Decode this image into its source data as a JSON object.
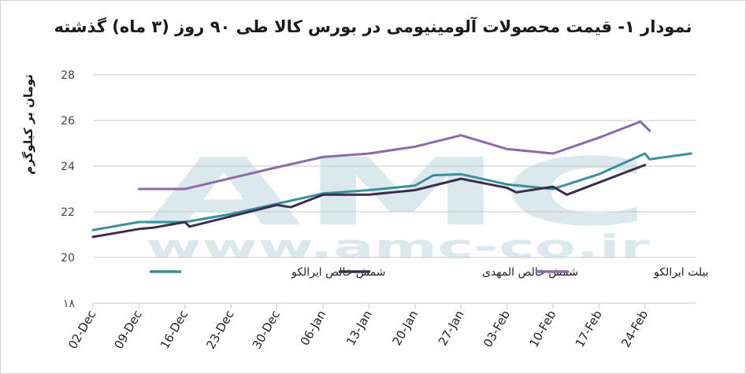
{
  "chart_data": {
    "type": "line",
    "title": "نمودار ۱- قیمت محصولات آلومینیومی در بورس کالا طی ۹۰ روز (۳ ماه) گذشته",
    "xlabel": "",
    "ylabel": "تومان بر کیلوگرم",
    "ylim": [
      18,
      28
    ],
    "yticks": [
      18,
      20,
      22,
      24,
      26,
      28
    ],
    "ytick_labels": [
      "۱۸",
      "20",
      "22",
      "24",
      "26",
      "28"
    ],
    "categories": [
      "02-Dec",
      "09-Dec",
      "16-Dec",
      "23-Dec",
      "30-Dec",
      "06-Jan",
      "13-Jan",
      "20-Jan",
      "27-Jan",
      "03-Feb",
      "10-Feb",
      "17-Feb",
      "24-Feb"
    ],
    "grid": true,
    "legend_position": "bottom",
    "series": [
      {
        "name": "شمش خالص ایرالکو",
        "color": "#3a8f9c",
        "points": [
          [
            0,
            21.2
          ],
          [
            1,
            21.55
          ],
          [
            2,
            21.55
          ],
          [
            3,
            21.9
          ],
          [
            4,
            22.35
          ],
          [
            5,
            22.8
          ],
          [
            6,
            22.95
          ],
          [
            7,
            23.15
          ],
          [
            7.4,
            23.6
          ],
          [
            8,
            23.65
          ],
          [
            9,
            23.2
          ],
          [
            10,
            23.0
          ],
          [
            11,
            23.65
          ],
          [
            12,
            24.55
          ],
          [
            12.1,
            24.3
          ],
          [
            13,
            24.55
          ]
        ]
      },
      {
        "name": "شمش خالص المهدی",
        "color": "#3c2c4e",
        "points": [
          [
            0,
            20.9
          ],
          [
            1,
            21.25
          ],
          [
            1.3,
            21.3
          ],
          [
            2,
            21.55
          ],
          [
            2.1,
            21.35
          ],
          [
            3,
            21.8
          ],
          [
            4,
            22.3
          ],
          [
            4.3,
            22.2
          ],
          [
            5,
            22.75
          ],
          [
            6,
            22.75
          ],
          [
            7,
            22.95
          ],
          [
            8,
            23.45
          ],
          [
            9,
            23.05
          ],
          [
            9.2,
            22.85
          ],
          [
            10,
            23.1
          ],
          [
            10.3,
            22.75
          ],
          [
            12,
            24.05
          ]
        ]
      },
      {
        "name": "بیلت ایرالکو",
        "color": "#8a6aad",
        "points": [
          [
            1,
            23.0
          ],
          [
            2,
            23.0
          ],
          [
            4,
            23.95
          ],
          [
            5,
            24.4
          ],
          [
            6,
            24.55
          ],
          [
            7,
            24.85
          ],
          [
            8,
            25.35
          ],
          [
            9,
            24.75
          ],
          [
            10,
            24.55
          ],
          [
            11,
            25.25
          ],
          [
            11.9,
            25.95
          ],
          [
            12.1,
            25.55
          ]
        ]
      }
    ],
    "watermark": {
      "main": "AMC",
      "url": "www.amc-co.ir"
    }
  }
}
